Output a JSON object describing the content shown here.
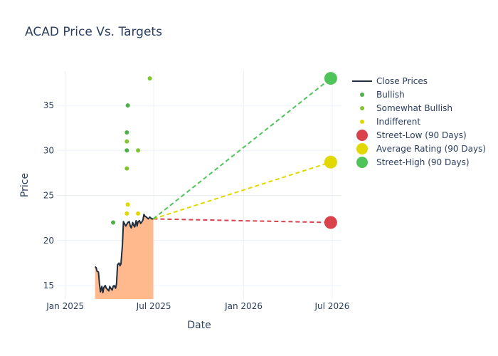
{
  "chart_data": {
    "type": "line",
    "title": "ACAD Price Vs. Targets",
    "xlabel": "Date",
    "ylabel": "Price",
    "xlim": [
      "2024-12-15",
      "2026-07-20"
    ],
    "ylim": [
      13.5,
      38.8
    ],
    "x_ticks": [
      {
        "date": "2025-01-01",
        "label": "Jan 2025"
      },
      {
        "date": "2025-07-01",
        "label": "Jul 2025"
      },
      {
        "date": "2026-01-01",
        "label": "Jan 2026"
      },
      {
        "date": "2026-07-01",
        "label": "Jul 2026"
      }
    ],
    "y_ticks": [
      15,
      20,
      25,
      30,
      35
    ],
    "grid": true,
    "legend_position": "right",
    "close_prices": {
      "name": "Close Prices",
      "color": "#1f2d3d",
      "fill_color": "#ffb98d",
      "x": [
        "2025-03-03",
        "2025-03-05",
        "2025-03-07",
        "2025-03-10",
        "2025-03-12",
        "2025-03-14",
        "2025-03-17",
        "2025-03-19",
        "2025-03-21",
        "2025-03-24",
        "2025-03-26",
        "2025-03-28",
        "2025-03-31",
        "2025-04-02",
        "2025-04-04",
        "2025-04-07",
        "2025-04-09",
        "2025-04-11",
        "2025-04-14",
        "2025-04-16",
        "2025-04-18",
        "2025-04-21",
        "2025-04-23",
        "2025-04-25",
        "2025-04-28",
        "2025-04-30",
        "2025-05-02",
        "2025-05-05",
        "2025-05-07",
        "2025-05-09",
        "2025-05-12",
        "2025-05-14",
        "2025-05-16",
        "2025-05-19",
        "2025-05-21",
        "2025-05-23",
        "2025-05-26",
        "2025-05-28",
        "2025-05-30",
        "2025-06-02",
        "2025-06-04",
        "2025-06-06",
        "2025-06-09",
        "2025-06-11",
        "2025-06-13",
        "2025-06-16",
        "2025-06-18",
        "2025-06-20",
        "2025-06-23",
        "2025-06-25",
        "2025-06-27",
        "2025-06-30"
      ],
      "y": [
        17.1,
        17.0,
        16.6,
        16.5,
        15.2,
        14.3,
        14.9,
        14.2,
        14.8,
        15.0,
        14.7,
        14.6,
        14.4,
        14.9,
        14.7,
        14.5,
        14.9,
        15.0,
        14.7,
        15.2,
        17.3,
        17.5,
        17.2,
        17.4,
        19.5,
        22.1,
        21.9,
        21.6,
        21.8,
        22.0,
        22.1,
        21.6,
        21.4,
        22.0,
        21.7,
        21.5,
        22.2,
        21.6,
        22.1,
        22.2,
        21.9,
        22.0,
        22.3,
        22.9,
        22.7,
        22.6,
        22.5,
        22.4,
        22.6,
        22.5,
        22.4,
        22.4
      ]
    },
    "ratings": [
      {
        "name": "Bullish",
        "color": "#4daf4a",
        "points": [
          {
            "x": "2025-04-09",
            "y": 22
          },
          {
            "x": "2025-05-07",
            "y": 32
          },
          {
            "x": "2025-05-07",
            "y": 30
          },
          {
            "x": "2025-05-09",
            "y": 35
          }
        ]
      },
      {
        "name": "Somewhat Bullish",
        "color": "#7fc62c",
        "points": [
          {
            "x": "2025-05-07",
            "y": 31
          },
          {
            "x": "2025-05-07",
            "y": 28
          },
          {
            "x": "2025-05-30",
            "y": 30
          },
          {
            "x": "2025-06-23",
            "y": 38
          }
        ]
      },
      {
        "name": "Indifferent",
        "color": "#e0d800",
        "points": [
          {
            "x": "2025-05-07",
            "y": 23
          },
          {
            "x": "2025-05-09",
            "y": 24
          },
          {
            "x": "2025-05-30",
            "y": 23
          }
        ]
      }
    ],
    "targets": [
      {
        "name": "Street-Low (90 Days)",
        "color": "#d9424b",
        "value": 22.0
      },
      {
        "name": "Average Rating (90 Days)",
        "color": "#e0d800",
        "value": 28.7
      },
      {
        "name": "Street-High (90 Days)",
        "color": "#4fc45a",
        "value": 38.0
      }
    ],
    "target_date": "2026-06-28"
  }
}
